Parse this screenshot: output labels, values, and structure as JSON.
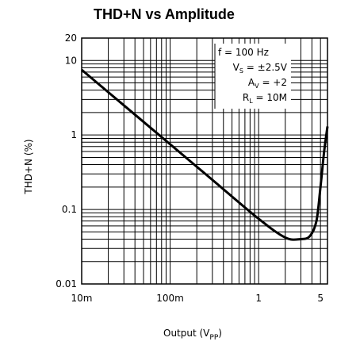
{
  "chart_data": {
    "type": "line",
    "title": "THD+N vs Amplitude",
    "xlabel": "Output (V",
    "xlabel_sub": "PP",
    "xlabel_close": ")",
    "ylabel": "THD+N (%)",
    "x_scale": "log",
    "y_scale": "log",
    "xlim": [
      0.01,
      6
    ],
    "ylim": [
      0.01,
      20
    ],
    "x_ticks": [
      {
        "value": 0.01,
        "label": "10m"
      },
      {
        "value": 0.1,
        "label": "100m"
      },
      {
        "value": 1,
        "label": "1"
      },
      {
        "value": 5,
        "label": "5"
      }
    ],
    "y_ticks": [
      {
        "value": 20,
        "label": "20"
      },
      {
        "value": 10,
        "label": "10"
      },
      {
        "value": 1,
        "label": "1"
      },
      {
        "value": 0.1,
        "label": "0.1"
      },
      {
        "value": 0.01,
        "label": "0.01"
      }
    ],
    "grid": true,
    "annotations": [
      {
        "id": "freq",
        "parts": [
          {
            "t": "f = 100 Hz"
          }
        ]
      },
      {
        "id": "vs",
        "parts": [
          {
            "t": "V"
          },
          {
            "t": "S",
            "sub": true
          },
          {
            "t": " = ±2.5V"
          }
        ]
      },
      {
        "id": "av",
        "parts": [
          {
            "t": "A"
          },
          {
            "t": "V",
            "sub": true
          },
          {
            "t": " = +2"
          }
        ]
      },
      {
        "id": "rl",
        "parts": [
          {
            "t": "R"
          },
          {
            "t": "L",
            "sub": true
          },
          {
            "t": " = 10M"
          }
        ]
      }
    ],
    "series": [
      {
        "values": [
          {
            "x": 0.01,
            "y": 7.5
          },
          {
            "x": 0.03,
            "y": 2.5
          },
          {
            "x": 0.1,
            "y": 0.75
          },
          {
            "x": 0.3,
            "y": 0.25
          },
          {
            "x": 1.0,
            "y": 0.075
          },
          {
            "x": 2.0,
            "y": 0.042
          },
          {
            "x": 3.0,
            "y": 0.04
          },
          {
            "x": 3.8,
            "y": 0.044
          },
          {
            "x": 4.5,
            "y": 0.07
          },
          {
            "x": 5.0,
            "y": 0.2
          },
          {
            "x": 5.5,
            "y": 0.6
          },
          {
            "x": 6.0,
            "y": 1.3
          }
        ],
        "color": "#000000"
      }
    ]
  }
}
